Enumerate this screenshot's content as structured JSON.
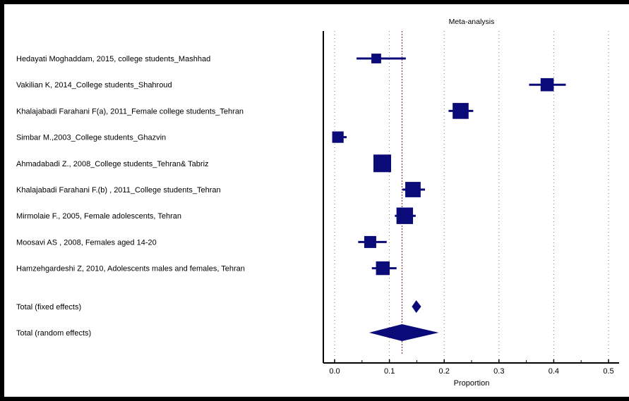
{
  "chart_data": {
    "type": "forest",
    "title": "Meta-analysis",
    "xlabel": "Proportion",
    "ylabel": "",
    "xlim": [
      -0.02,
      0.52
    ],
    "xticks": [
      "0.0",
      "0.1",
      "0.2",
      "0.3",
      "0.4",
      "0.5"
    ],
    "xtick_values": [
      0.0,
      0.1,
      0.2,
      0.3,
      0.4,
      0.5
    ],
    "grid": "vertical dotted",
    "reference_line": 0.123,
    "studies": [
      {
        "label": "Hedayati Moghaddam, 2015, college students_Mashhad",
        "estimate": 0.076,
        "ci": [
          0.04,
          0.13
        ],
        "weight": 0.3
      },
      {
        "label": "Vakilian K, 2014_College students_Shahroud",
        "estimate": 0.388,
        "ci": [
          0.355,
          0.422
        ],
        "weight": 0.6
      },
      {
        "label": "Khalajabadi Farahani F(a), 2011_Female college students_Tehran",
        "estimate": 0.23,
        "ci": [
          0.208,
          0.253
        ],
        "weight": 0.85
      },
      {
        "label": "Simbar M.,2003_College students_Ghazvin",
        "estimate": 0.006,
        "ci": [
          0.0,
          0.022
        ],
        "weight": 0.45
      },
      {
        "label": "Ahmadabadi Z., 2008_College students_Tehran& Tabriz",
        "estimate": 0.087,
        "ci": [
          0.073,
          0.103
        ],
        "weight": 1.0
      },
      {
        "label": "Khalajabadi Farahani F.(b) , 2011_College students_Tehran",
        "estimate": 0.143,
        "ci": [
          0.124,
          0.165
        ],
        "weight": 0.8
      },
      {
        "label": "Mirmolaie F., 2005, Female adolescents, Tehran",
        "estimate": 0.128,
        "ci": [
          0.11,
          0.148
        ],
        "weight": 0.9
      },
      {
        "label": "Moosavi AS , 2008, Females aged 14-20",
        "estimate": 0.065,
        "ci": [
          0.043,
          0.095
        ],
        "weight": 0.5
      },
      {
        "label": "Hamzehgardeshi Z, 2010, Adolescents males and females, Tehran",
        "estimate": 0.088,
        "ci": [
          0.068,
          0.113
        ],
        "weight": 0.65
      }
    ],
    "totals": [
      {
        "label": "Total (fixed effects)",
        "estimate": 0.149,
        "ci": [
          0.141,
          0.158
        ]
      },
      {
        "label": "Total (random effects)",
        "estimate": 0.123,
        "ci": [
          0.063,
          0.19
        ]
      }
    ]
  }
}
